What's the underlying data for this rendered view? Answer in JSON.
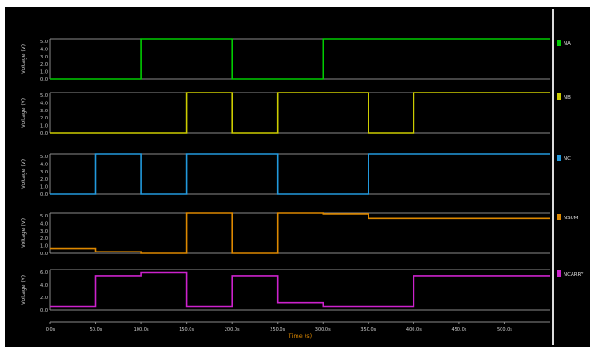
{
  "chart_data": [
    {
      "type": "line",
      "ylabel": "Voltage (V)",
      "yticks": [
        "5.0",
        "4.0",
        "3.0",
        "2.0",
        "1.0",
        "0.0"
      ],
      "ylim": [
        0,
        5
      ],
      "xlim": [
        0,
        550
      ],
      "series": [
        {
          "name": "NA",
          "color": "#00cc00",
          "x": [
            0,
            100,
            100,
            200,
            200,
            300,
            300,
            550
          ],
          "y": [
            0.0,
            0.0,
            5.0,
            5.0,
            0.0,
            0.0,
            5.0,
            5.0
          ]
        }
      ]
    },
    {
      "type": "line",
      "ylabel": "Voltage (V)",
      "yticks": [
        "5.0",
        "4.0",
        "3.0",
        "2.0",
        "1.0",
        "0.0"
      ],
      "ylim": [
        0,
        5
      ],
      "xlim": [
        0,
        550
      ],
      "series": [
        {
          "name": "NB",
          "color": "#cccc00",
          "x": [
            0,
            150,
            150,
            200,
            200,
            250,
            250,
            350,
            350,
            400,
            400,
            550
          ],
          "y": [
            0.0,
            0.0,
            5.0,
            5.0,
            0.0,
            0.0,
            5.0,
            5.0,
            0.0,
            0.0,
            5.0,
            5.0
          ]
        }
      ]
    },
    {
      "type": "line",
      "ylabel": "Voltage (V)",
      "yticks": [
        "5.0",
        "4.0",
        "3.0",
        "2.0",
        "1.0",
        "0.0"
      ],
      "ylim": [
        0,
        5
      ],
      "xlim": [
        0,
        550
      ],
      "series": [
        {
          "name": "NC",
          "color": "#2299dd",
          "x": [
            0,
            50,
            50,
            100,
            100,
            150,
            150,
            250,
            250,
            350,
            350,
            400,
            400,
            550
          ],
          "y": [
            0.0,
            0.0,
            5.0,
            5.0,
            0.0,
            0.0,
            5.0,
            5.0,
            0.0,
            0.0,
            5.0,
            5.0,
            5.0,
            5.0
          ]
        }
      ]
    },
    {
      "type": "line",
      "ylabel": "Voltage (V)",
      "yticks": [
        "5.0",
        "4.0",
        "3.0",
        "2.0",
        "1.0",
        "0.0"
      ],
      "ylim": [
        0,
        5
      ],
      "xlim": [
        0,
        550
      ],
      "series": [
        {
          "name": "NSUM",
          "color": "#dd8800",
          "x": [
            0,
            50,
            50,
            100,
            100,
            150,
            150,
            200,
            200,
            250,
            250,
            300,
            300,
            350,
            350,
            400,
            400,
            550
          ],
          "y": [
            0.6,
            0.6,
            0.2,
            0.2,
            0.0,
            0.0,
            5.0,
            5.0,
            0.0,
            0.0,
            5.0,
            5.0,
            4.9,
            4.9,
            4.3,
            4.3,
            4.3,
            4.3
          ]
        }
      ]
    },
    {
      "type": "line",
      "ylabel": "Voltage (V)",
      "yticks": [
        "6.0",
        "4.0",
        "2.0",
        "0.0"
      ],
      "ylim": [
        -0.5,
        6
      ],
      "xlim": [
        0,
        550
      ],
      "series": [
        {
          "name": "NCARRY",
          "color": "#cc22cc",
          "x": [
            0,
            50,
            50,
            100,
            100,
            150,
            150,
            200,
            200,
            250,
            250,
            300,
            300,
            350,
            350,
            400,
            400,
            550
          ],
          "y": [
            0.0,
            0.0,
            5.0,
            5.0,
            5.5,
            5.5,
            0.0,
            0.0,
            5.0,
            5.0,
            0.7,
            0.7,
            0.0,
            0.0,
            0.0,
            0.0,
            5.0,
            5.0
          ]
        }
      ]
    }
  ],
  "x_axis": {
    "label": "Time (s)",
    "tick_labels": [
      "0.0s",
      "50.0s",
      "100.0s",
      "150.0s",
      "200.0s",
      "250.0s",
      "300.0s",
      "350.0s",
      "400.0s",
      "450.0s",
      "500.0s"
    ]
  }
}
